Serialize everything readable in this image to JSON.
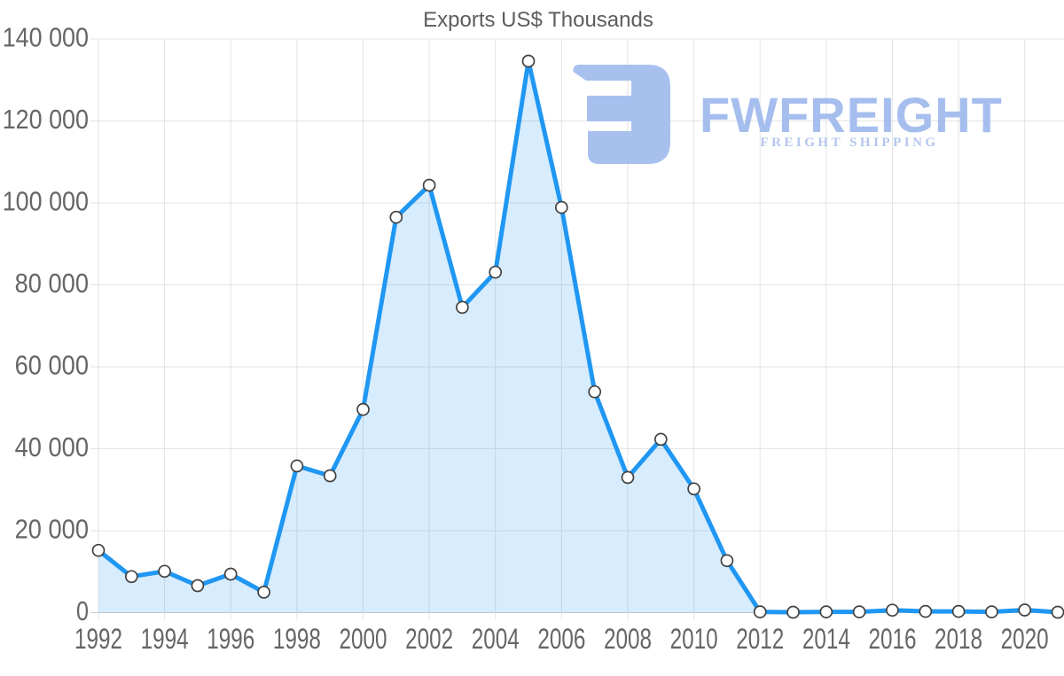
{
  "chart_data": {
    "type": "area",
    "title": "Exports US$ Thousands",
    "xlabel": "",
    "ylabel": "",
    "x": [
      1992,
      1993,
      1994,
      1995,
      1996,
      1997,
      1998,
      1999,
      2000,
      2001,
      2002,
      2003,
      2004,
      2005,
      2006,
      2007,
      2008,
      2009,
      2010,
      2011,
      2012,
      2013,
      2014,
      2015,
      2016,
      2017,
      2018,
      2019,
      2020,
      2021
    ],
    "values": [
      15200,
      8800,
      10100,
      6600,
      9400,
      5000,
      35800,
      33400,
      49600,
      96500,
      104300,
      74500,
      83100,
      134600,
      98900,
      53900,
      33000,
      42300,
      30200,
      12700,
      200,
      100,
      200,
      200,
      600,
      300,
      300,
      200,
      650,
      100
    ],
    "ylim": [
      0,
      140000
    ],
    "y_ticks": [
      {
        "value": 0,
        "label": "0"
      },
      {
        "value": 20000,
        "label": "20 000"
      },
      {
        "value": 40000,
        "label": "40 000"
      },
      {
        "value": 60000,
        "label": "60 000"
      },
      {
        "value": 80000,
        "label": "80 000"
      },
      {
        "value": 100000,
        "label": "100 000"
      },
      {
        "value": 120000,
        "label": "120 000"
      },
      {
        "value": 140000,
        "label": "140 000"
      }
    ],
    "x_tick_labels": [
      "1992",
      "1994",
      "1996",
      "1998",
      "2000",
      "2002",
      "2004",
      "2006",
      "2008",
      "2010",
      "2012",
      "2014",
      "2016",
      "2018",
      "2020"
    ],
    "grid": true,
    "legend": "none",
    "colors": {
      "line": "#1f97f3",
      "fill": "rgba(31,151,243,0.18)",
      "marker_fill": "#ffffff",
      "marker_stroke": "#424242",
      "grid": "#e3e3e3",
      "zero_line": "#c8c8c8",
      "tick_label": "#666666",
      "title": "#5d5d5d"
    }
  },
  "watermark": {
    "brand": "FWFREIGHT",
    "tagline": "FREIGHT SHIPPING",
    "icon": "fwfreight-logo-icon",
    "color": "#a6beee"
  }
}
